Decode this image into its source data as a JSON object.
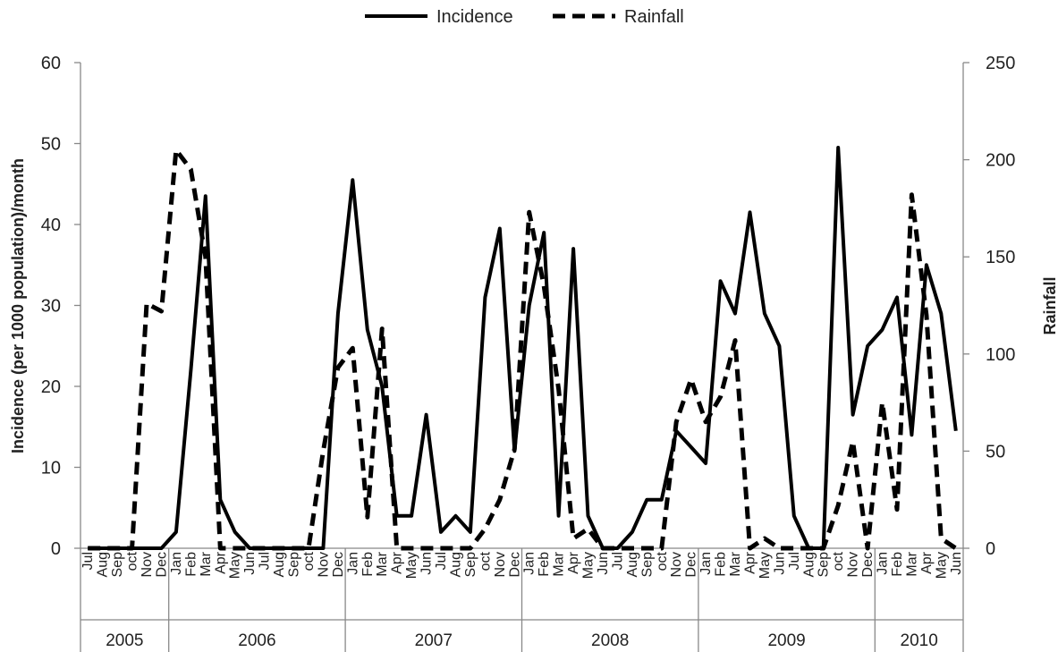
{
  "chart_data": {
    "type": "line",
    "legend": {
      "position": "top-center"
    },
    "y_left": {
      "label": "Incidence  (per 1000 population)/month",
      "ticks": [
        0,
        10,
        20,
        30,
        40,
        50,
        60
      ],
      "ylim": [
        0,
        60
      ]
    },
    "y_right": {
      "label": "Rainfall",
      "ticks": [
        0,
        50,
        100,
        150,
        200,
        250
      ],
      "ylim": [
        0,
        250
      ]
    },
    "years": [
      {
        "label": "2005",
        "start": 0,
        "count": 6
      },
      {
        "label": "2006",
        "start": 6,
        "count": 12
      },
      {
        "label": "2007",
        "start": 18,
        "count": 12
      },
      {
        "label": "2008",
        "start": 30,
        "count": 12
      },
      {
        "label": "2009",
        "start": 42,
        "count": 12
      },
      {
        "label": "2010",
        "start": 54,
        "count": 6
      }
    ],
    "categories": [
      "Jul",
      "Aug",
      "Sep",
      "oct",
      "Nov",
      "Dec",
      "Jan",
      "Feb",
      "Mar",
      "Apr",
      "May",
      "Jun",
      "Jul",
      "Aug",
      "Sep",
      "oct",
      "Nov",
      "Dec",
      "Jan",
      "Feb",
      "Mar",
      "Apr",
      "May",
      "Jun",
      "Jul",
      "Aug",
      "Sep",
      "oct",
      "Nov",
      "Dec",
      "Jan",
      "Feb",
      "Mar",
      "Apr",
      "May",
      "Jun",
      "Jul",
      "Aug",
      "Sep",
      "oct",
      "Nov",
      "Dec",
      "Jan",
      "Feb",
      "Mar",
      "Apr",
      "May",
      "Jun",
      "Jul",
      "Aug",
      "Sep",
      "oct",
      "Nov",
      "Dec",
      "Jan",
      "Feb",
      "Mar",
      "Apr",
      "May",
      "Jun"
    ],
    "series": [
      {
        "name": "Incidence",
        "axis": "left",
        "style": "solid",
        "values": [
          0,
          0,
          0,
          0,
          0,
          0,
          2,
          22,
          43.5,
          6,
          2,
          0,
          0,
          0,
          0,
          0,
          0,
          29,
          45.5,
          27,
          20,
          4,
          4,
          16.5,
          2,
          4,
          2,
          31,
          39.5,
          12,
          30,
          39,
          4,
          37,
          4,
          0,
          0,
          2,
          6,
          6,
          14.5,
          12.5,
          10.5,
          33,
          29,
          41.5,
          29,
          25,
          4,
          0,
          0,
          49.5,
          16.5,
          25,
          27,
          31,
          14,
          35,
          29,
          14.5
        ]
      },
      {
        "name": "Rainfall",
        "axis": "right",
        "style": "dashed",
        "values": [
          0,
          0,
          0,
          0,
          126,
          122,
          205,
          195,
          150,
          0,
          0,
          0,
          0,
          0,
          0,
          0,
          50,
          93,
          103,
          16,
          113,
          0,
          0,
          0,
          0,
          0,
          0,
          10,
          25,
          51,
          173,
          135,
          82,
          5,
          10,
          0,
          0,
          0,
          0,
          0,
          65,
          87,
          65,
          78,
          107,
          0,
          5,
          0,
          0,
          0,
          0,
          22,
          55,
          0,
          75,
          20,
          182,
          120,
          5,
          0
        ]
      }
    ]
  }
}
